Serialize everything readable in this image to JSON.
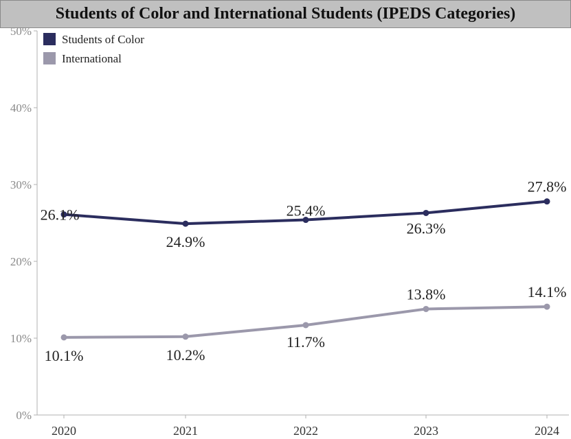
{
  "chart_data": {
    "type": "line",
    "title": "Students of Color and International Students (IPEDS Categories)",
    "categories": [
      "2020",
      "2021",
      "2022",
      "2023",
      "2024"
    ],
    "ylim": [
      0,
      50
    ],
    "yticks": [
      "0%",
      "10%",
      "20%",
      "30%",
      "40%",
      "50%"
    ],
    "legend_position": "top-left",
    "grid": false,
    "series": [
      {
        "name": "Students of Color",
        "color": "#2b2d5e",
        "values": [
          26.1,
          24.9,
          25.4,
          26.3,
          27.8
        ],
        "labels": [
          "26.1%",
          "24.9%",
          "25.4%",
          "26.3%",
          "27.8%"
        ]
      },
      {
        "name": "International",
        "color": "#9b98ab",
        "values": [
          10.1,
          10.2,
          11.7,
          13.8,
          14.1
        ],
        "labels": [
          "10.1%",
          "10.2%",
          "11.7%",
          "13.8%",
          "14.1%"
        ]
      }
    ]
  }
}
